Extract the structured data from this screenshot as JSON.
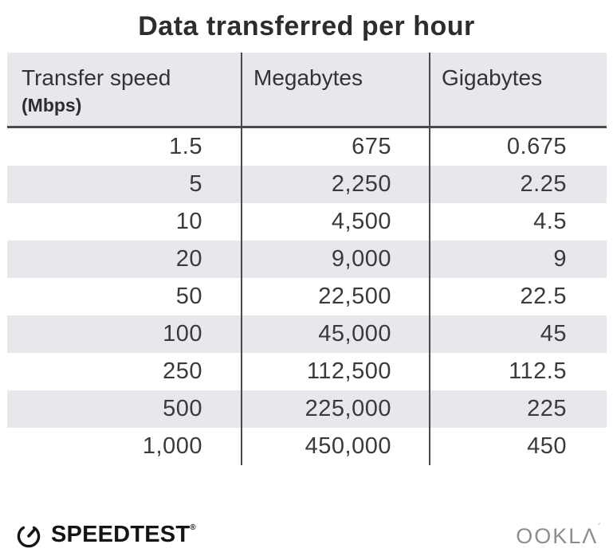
{
  "title": "Data transferred per hour",
  "table": {
    "columns": [
      {
        "label": "Transfer speed",
        "sublabel": "(Mbps)"
      },
      {
        "label": "Megabytes",
        "sublabel": ""
      },
      {
        "label": "Gigabytes",
        "sublabel": ""
      }
    ],
    "rows": [
      [
        "1.5",
        "675",
        "0.675"
      ],
      [
        "5",
        "2,250",
        "2.25"
      ],
      [
        "10",
        "4,500",
        "4.5"
      ],
      [
        "20",
        "9,000",
        "9"
      ],
      [
        "50",
        "22,500",
        "22.5"
      ],
      [
        "100",
        "45,000",
        "45"
      ],
      [
        "250",
        "112,500",
        "112.5"
      ],
      [
        "500",
        "225,000",
        "225"
      ],
      [
        "1,000",
        "450,000",
        "450"
      ]
    ]
  },
  "footer": {
    "speedtest_label": "SPEEDTEST",
    "speedtest_trademark": "®",
    "ookla_label": "OOKLΛ",
    "ookla_trademark": "´"
  },
  "colors": {
    "header_bg": "#e8e8ec",
    "row_alt_bg": "#e8e8ec",
    "divider": "#4a4a4d",
    "title_text": "#2d2d30",
    "body_text": "#3a3a3c",
    "ookla_gray": "#8d8d90"
  },
  "chart_data": {
    "type": "table",
    "title": "Data transferred per hour",
    "columns": [
      "Transfer speed (Mbps)",
      "Megabytes",
      "Gigabytes"
    ],
    "rows": [
      [
        1.5,
        675,
        0.675
      ],
      [
        5,
        2250,
        2.25
      ],
      [
        10,
        4500,
        4.5
      ],
      [
        20,
        9000,
        9
      ],
      [
        50,
        22500,
        22.5
      ],
      [
        100,
        45000,
        45
      ],
      [
        250,
        112500,
        112.5
      ],
      [
        500,
        225000,
        225
      ],
      [
        1000,
        450000,
        450
      ]
    ]
  }
}
